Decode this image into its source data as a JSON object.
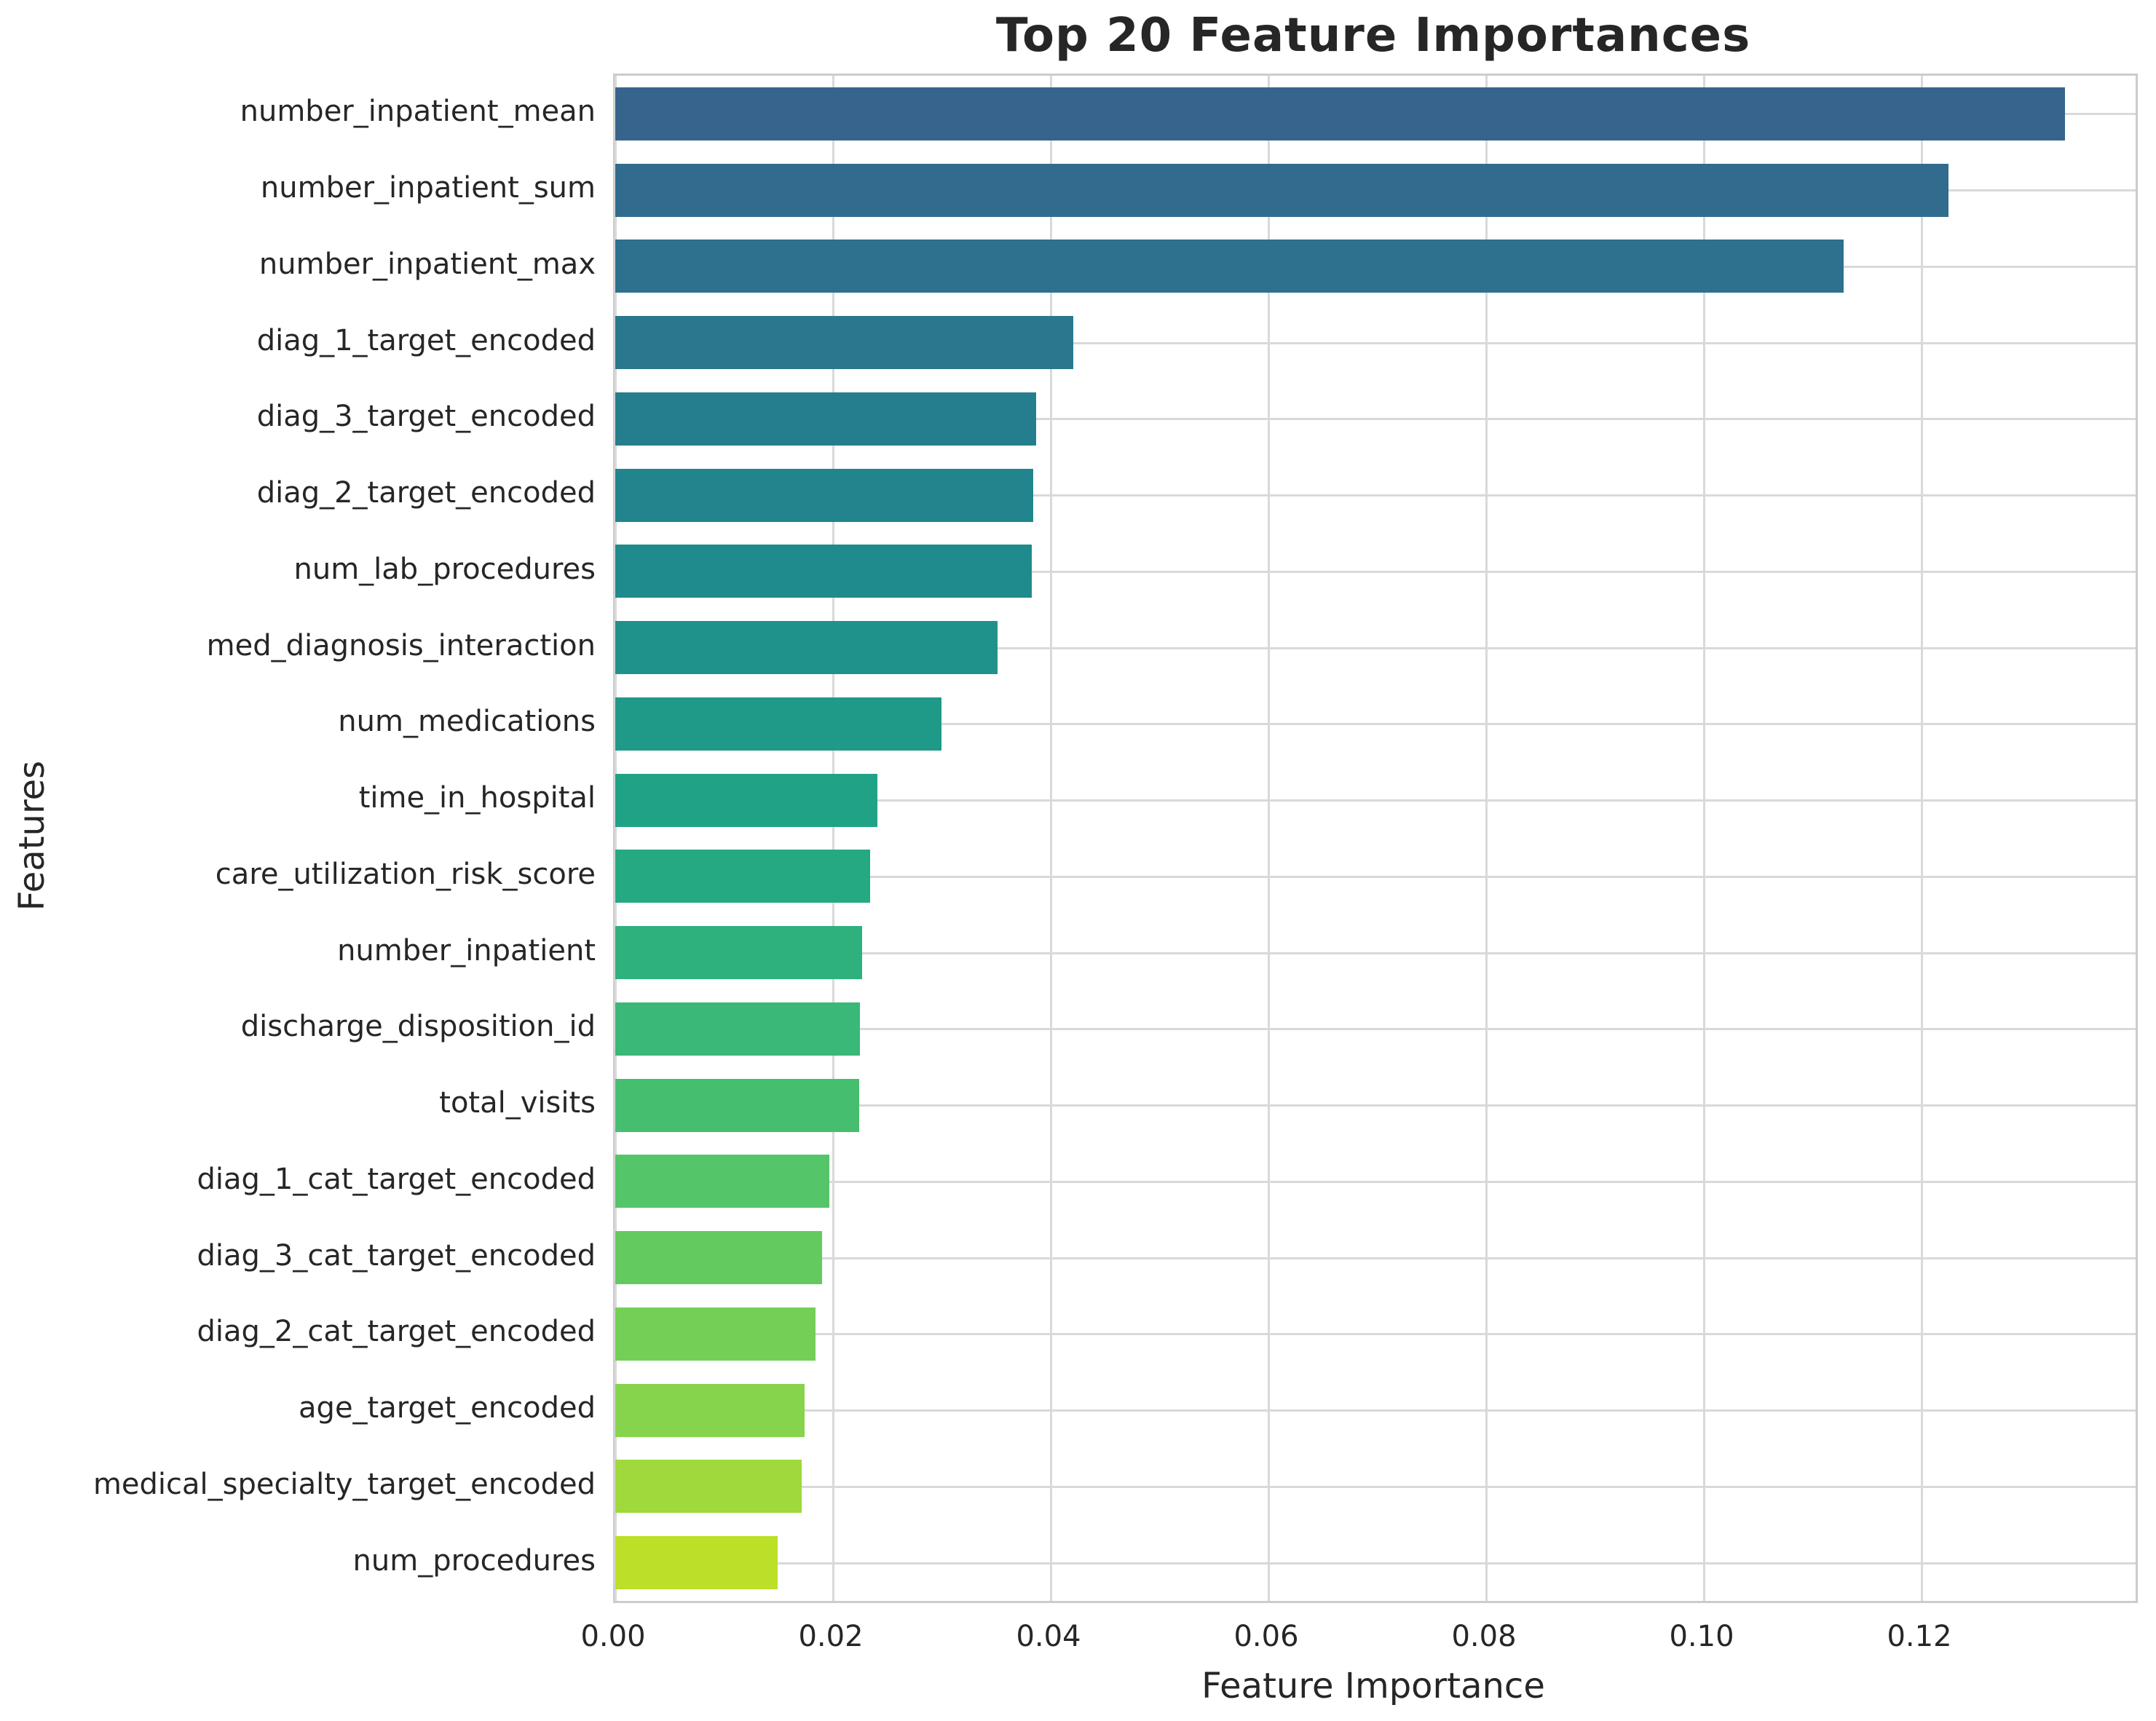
{
  "title": "Top 20 Feature Importances",
  "chart_data": {
    "type": "bar",
    "orientation": "horizontal",
    "title": "Top 20 Feature Importances",
    "xlabel": "Feature Importance",
    "ylabel": "Features",
    "xlim": [
      0,
      0.1397
    ],
    "grid": true,
    "x_ticks": [
      {
        "value": 0.0,
        "label": "0.00"
      },
      {
        "value": 0.02,
        "label": "0.02"
      },
      {
        "value": 0.04,
        "label": "0.04"
      },
      {
        "value": 0.06,
        "label": "0.06"
      },
      {
        "value": 0.08,
        "label": "0.08"
      },
      {
        "value": 0.1,
        "label": "0.10"
      },
      {
        "value": 0.12,
        "label": "0.12"
      }
    ],
    "categories": [
      "number_inpatient_mean",
      "number_inpatient_sum",
      "number_inpatient_max",
      "diag_1_target_encoded",
      "diag_3_target_encoded",
      "diag_2_target_encoded",
      "num_lab_procedures",
      "med_diagnosis_interaction",
      "num_medications",
      "time_in_hospital",
      "care_utilization_risk_score",
      "number_inpatient",
      "discharge_disposition_id",
      "total_visits",
      "diag_1_cat_target_encoded",
      "diag_3_cat_target_encoded",
      "diag_2_cat_target_encoded",
      "age_target_encoded",
      "medical_specialty_target_encoded",
      "num_procedures"
    ],
    "values": [
      0.1332,
      0.1225,
      0.1129,
      0.0421,
      0.0387,
      0.0384,
      0.0383,
      0.0351,
      0.03,
      0.0241,
      0.0234,
      0.0227,
      0.0225,
      0.0224,
      0.0197,
      0.019,
      0.0184,
      0.0174,
      0.0171,
      0.0149
    ],
    "bar_colors": [
      "#36648d",
      "#316b8e",
      "#2d718e",
      "#29788e",
      "#257e8e",
      "#22858d",
      "#1f8b8c",
      "#1f928b",
      "#1f9a89",
      "#20a286",
      "#25a982",
      "#2eb17d",
      "#39b877",
      "#46be70",
      "#54c568",
      "#62ca5f",
      "#73cf56",
      "#86d44b",
      "#9fd93b",
      "#bcdf27"
    ],
    "legend": null
  },
  "colors": {
    "background": "#ffffff",
    "grid": "#d9d9d9",
    "spine": "#cccccc",
    "text": "#262626"
  }
}
